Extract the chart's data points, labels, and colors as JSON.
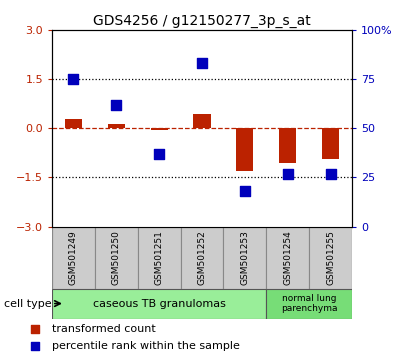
{
  "title": "GDS4256 / g12150277_3p_s_at",
  "samples": [
    "GSM501249",
    "GSM501250",
    "GSM501251",
    "GSM501252",
    "GSM501253",
    "GSM501254",
    "GSM501255"
  ],
  "red_values": [
    0.3,
    0.12,
    -0.05,
    0.45,
    -1.3,
    -1.05,
    -0.95
  ],
  "blue_values_pct": [
    75,
    62,
    37,
    83,
    18,
    27,
    27
  ],
  "ylim_left": [
    -3,
    3
  ],
  "ylim_right": [
    0,
    100
  ],
  "yticks_left": [
    -3,
    -1.5,
    0,
    1.5,
    3
  ],
  "yticks_right": [
    0,
    25,
    50,
    75,
    100
  ],
  "group1_indices": [
    0,
    1,
    2,
    3,
    4
  ],
  "group2_indices": [
    5,
    6
  ],
  "group1_label": "caseous TB granulomas",
  "group2_label": "normal lung\nparenchyma",
  "group1_color": "#99EE99",
  "group2_color": "#77DD77",
  "sample_box_color": "#CCCCCC",
  "cell_type_label": "cell type",
  "legend1_label": "transformed count",
  "legend2_label": "percentile rank within the sample",
  "red_color": "#BB2200",
  "blue_color": "#0000BB",
  "bar_width": 0.4,
  "dot_size": 55,
  "title_fontsize": 10,
  "tick_fontsize": 8,
  "sample_fontsize": 6.5,
  "legend_fontsize": 8,
  "group_fontsize": 8
}
